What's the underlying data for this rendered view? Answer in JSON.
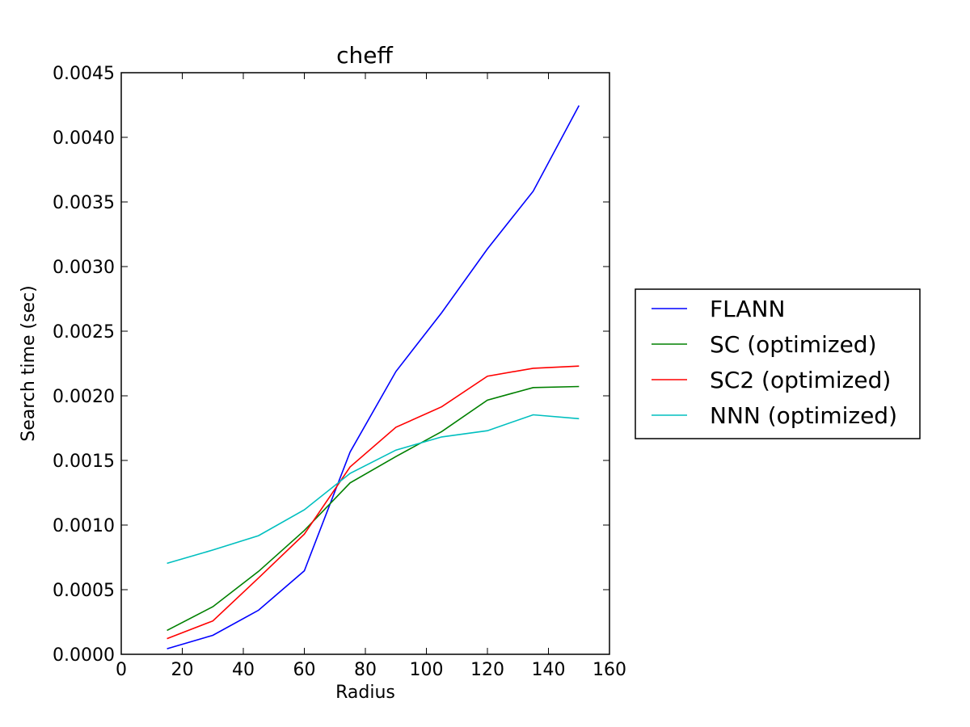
{
  "chart_data": {
    "type": "line",
    "title": "cheff",
    "xlabel": "Radius",
    "ylabel": "Search time (sec)",
    "xlim": [
      0,
      160
    ],
    "ylim": [
      0,
      0.0045
    ],
    "xticks": [
      "0",
      "20",
      "40",
      "60",
      "80",
      "100",
      "120",
      "140",
      "160"
    ],
    "yticks": [
      "0.0000",
      "0.0005",
      "0.0010",
      "0.0015",
      "0.0020",
      "0.0025",
      "0.0030",
      "0.0035",
      "0.0040",
      "0.0045"
    ],
    "x": [
      15,
      30,
      45,
      60,
      75,
      90,
      105,
      120,
      135,
      150
    ],
    "grid": false,
    "legend_position": "center-right outside",
    "series": [
      {
        "name": "FLANN",
        "color": "#0000ff",
        "values": [
          4.3e-05,
          0.000147,
          0.000341,
          0.000646,
          0.001565,
          0.002188,
          0.002643,
          0.003137,
          0.003583,
          0.004246
        ]
      },
      {
        "name": "SC (optimized)",
        "color": "#008000",
        "values": [
          0.000185,
          0.000368,
          0.000642,
          0.000958,
          0.001326,
          0.00153,
          0.001723,
          0.001967,
          0.002064,
          0.002072
        ]
      },
      {
        "name": "SC2 (optimized)",
        "color": "#ff0000",
        "values": [
          0.000121,
          0.000258,
          0.000591,
          0.00093,
          0.00145,
          0.001757,
          0.001915,
          0.002152,
          0.002213,
          0.00223
        ]
      },
      {
        "name": "NNN (optimized)",
        "color": "#00bfbf",
        "values": [
          0.000704,
          0.000807,
          0.000918,
          0.001118,
          0.0014,
          0.00158,
          0.001682,
          0.00173,
          0.001853,
          0.001823
        ]
      }
    ]
  }
}
